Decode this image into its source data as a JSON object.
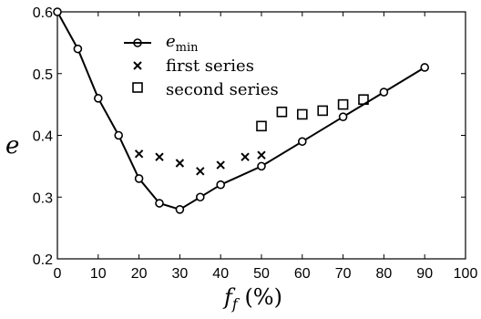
{
  "chart_data": {
    "type": "line",
    "title": "",
    "xlabel_main": "f",
    "xlabel_sub": "f",
    "xlabel_unit": " (%)",
    "ylabel": "e",
    "xlim": [
      0,
      100
    ],
    "ylim": [
      0.2,
      0.6
    ],
    "x_ticks": [
      "0",
      "10",
      "20",
      "30",
      "40",
      "50",
      "60",
      "70",
      "80",
      "90",
      "100"
    ],
    "y_ticks": [
      "0.2",
      "0.3",
      "0.4",
      "0.5",
      "0.6"
    ],
    "grid": false,
    "legend_position": "top-center",
    "series": [
      {
        "name": "e_min",
        "name_main": "e",
        "name_sub": "min",
        "style": "line-circle",
        "x": [
          0,
          5,
          10,
          15,
          20,
          25,
          30,
          35,
          40,
          50,
          60,
          70,
          80,
          90
        ],
        "y": [
          0.6,
          0.54,
          0.46,
          0.4,
          0.33,
          0.29,
          0.28,
          0.3,
          0.32,
          0.35,
          0.39,
          0.43,
          0.47,
          0.51
        ]
      },
      {
        "name": "first series",
        "style": "x-marker",
        "x": [
          20,
          25,
          30,
          35,
          40,
          46,
          50
        ],
        "y": [
          0.37,
          0.365,
          0.355,
          0.342,
          0.352,
          0.365,
          0.368
        ]
      },
      {
        "name": "second series",
        "style": "square-marker",
        "x": [
          50,
          55,
          60,
          65,
          70,
          75
        ],
        "y": [
          0.415,
          0.438,
          0.434,
          0.44,
          0.45,
          0.458
        ]
      }
    ]
  }
}
